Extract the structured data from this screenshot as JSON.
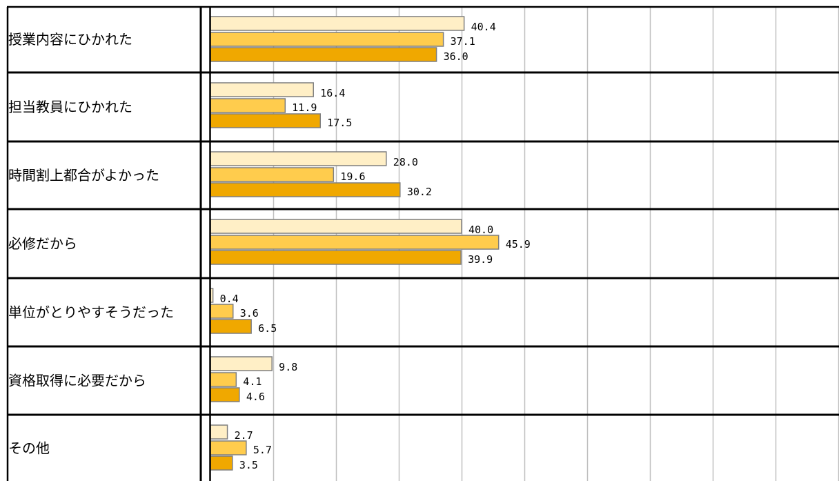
{
  "chart_data": {
    "type": "bar",
    "orientation": "horizontal",
    "categories": [
      "授業内容にひかれた",
      "担当教員にひかれた",
      "時間割上都合がよかった",
      "必修だから",
      "単位がとりやすそうだった",
      "資格取得に必要だから",
      "その他"
    ],
    "series": [
      {
        "color": "#FFEFC6",
        "values": [
          40.4,
          16.4,
          28.0,
          40.0,
          0.4,
          9.8,
          2.7
        ],
        "labels": [
          "40.4",
          "16.4",
          "28.0",
          "40.0",
          "0.4",
          "9.8",
          "2.7"
        ]
      },
      {
        "color": "#FFCC4D",
        "values": [
          37.1,
          11.9,
          19.6,
          45.9,
          3.6,
          4.1,
          5.7
        ],
        "labels": [
          "37.1",
          "11.9",
          "19.6",
          "45.9",
          "3.6",
          "4.1",
          "5.7"
        ]
      },
      {
        "color": "#F0A800",
        "values": [
          36.0,
          17.5,
          30.2,
          39.9,
          6.5,
          4.6,
          3.5
        ],
        "labels": [
          "36.0",
          "17.5",
          "30.2",
          "39.9",
          "6.5",
          "4.6",
          "3.5"
        ]
      }
    ],
    "xlim": [
      0,
      100
    ],
    "gridlines": true,
    "gridline_step": 10,
    "bar_border_color": "#7F7F7F",
    "grid_color": "#BFBFBF"
  }
}
